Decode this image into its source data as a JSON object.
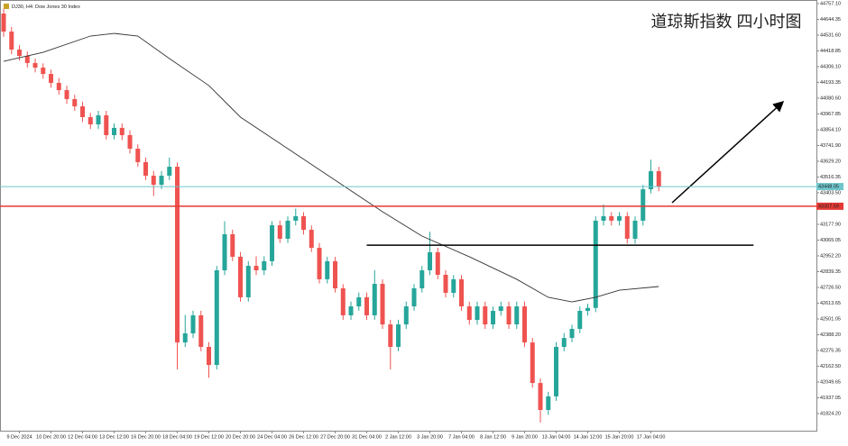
{
  "chart_data": {
    "type": "candlestick",
    "header": "DJ30, H4: Dow Jones 30 Index",
    "title": "道琼斯指数 四小时图",
    "up_color": "#26a69a",
    "down_color": "#ef5350",
    "open": [
      44686,
      44557,
      44428,
      44383,
      44332,
      44299,
      44254,
      44190,
      44138,
      44074,
      44022,
      43945,
      43893,
      43958,
      43816,
      43868,
      43816,
      43719,
      43623,
      43526,
      43461,
      43526,
      43590,
      42333,
      42398,
      42527,
      42301,
      42172,
      42849,
      43107,
      42946,
      42656,
      42881,
      42849,
      42914,
      43171,
      43075,
      43204,
      43236,
      43139,
      43010,
      42785,
      42914,
      42720,
      42527,
      42591,
      42656,
      42527,
      42752,
      42462,
      42301,
      42462,
      42591,
      42720,
      42849,
      42978,
      42817,
      42688,
      42785,
      42591,
      42494,
      42591,
      42462,
      42559,
      42591,
      42462,
      42591,
      42333,
      42043,
      41850,
      41947,
      42301,
      42365,
      42430,
      42559,
      42580,
      43204,
      43236,
      43204,
      43236,
      43075,
      43204,
      43429,
      43558
    ],
    "high": [
      44720,
      44590,
      44460,
      44415,
      44365,
      44330,
      44285,
      44225,
      44170,
      44105,
      44055,
      43975,
      43990,
      43990,
      43900,
      43900,
      43850,
      43750,
      43655,
      43560,
      43560,
      43655,
      43620,
      42530,
      42560,
      42560,
      42335,
      42880,
      43200,
      43140,
      42980,
      42915,
      42950,
      42950,
      43200,
      43205,
      43235,
      43290,
      43265,
      43170,
      43045,
      42945,
      42945,
      42750,
      42625,
      42690,
      42690,
      42850,
      42785,
      42495,
      42495,
      42625,
      42750,
      42880,
      43125,
      43010,
      42850,
      42815,
      42815,
      42625,
      42625,
      42625,
      42590,
      42625,
      42625,
      42625,
      42625,
      42365,
      42075,
      41980,
      42335,
      42400,
      42460,
      42590,
      42610,
      43235,
      43320,
      43265,
      43265,
      43265,
      43235,
      43460,
      43640,
      43590
    ],
    "low": [
      44520,
      44395,
      44350,
      44300,
      44265,
      44220,
      44155,
      44105,
      44040,
      43990,
      43910,
      43860,
      43860,
      43785,
      43785,
      43780,
      43685,
      43590,
      43495,
      43380,
      43430,
      43495,
      42140,
      42300,
      42365,
      42270,
      42080,
      42140,
      42815,
      42915,
      42625,
      42625,
      42815,
      42815,
      42880,
      43045,
      43045,
      43170,
      43105,
      42980,
      42755,
      42755,
      42690,
      42495,
      42495,
      42560,
      42495,
      42495,
      42430,
      42140,
      42270,
      42430,
      42560,
      42690,
      42815,
      42785,
      42655,
      42655,
      42560,
      42460,
      42460,
      42430,
      42430,
      42525,
      42430,
      42430,
      42300,
      42010,
      41760,
      41815,
      41915,
      42270,
      42335,
      42400,
      42525,
      42550,
      43170,
      43170,
      43170,
      43040,
      43040,
      43170,
      43400,
      43415
    ],
    "close": [
      44557,
      44428,
      44383,
      44332,
      44299,
      44254,
      44190,
      44138,
      44074,
      44022,
      43945,
      43893,
      43958,
      43816,
      43868,
      43816,
      43719,
      43623,
      43526,
      43461,
      43526,
      43590,
      42333,
      42398,
      42527,
      42301,
      42172,
      42849,
      43107,
      42946,
      42656,
      42881,
      42849,
      42914,
      43171,
      43075,
      43204,
      43236,
      43139,
      43010,
      42785,
      42914,
      42720,
      42527,
      42591,
      42656,
      42527,
      42752,
      42462,
      42301,
      42462,
      42591,
      42720,
      42849,
      42978,
      42817,
      42688,
      42785,
      42591,
      42494,
      42591,
      42462,
      42559,
      42591,
      42462,
      42591,
      42333,
      42043,
      41850,
      41947,
      42301,
      42365,
      42430,
      42559,
      42580,
      43204,
      43236,
      43204,
      43236,
      43075,
      43204,
      43429,
      43558,
      43448
    ],
    "ma": {
      "color": "#333333",
      "x": [
        0,
        5,
        11,
        14,
        17,
        21,
        26,
        30,
        36,
        42,
        48,
        53,
        59,
        65,
        69,
        72,
        75,
        78,
        83
      ],
      "values": [
        44344,
        44409,
        44525,
        44544,
        44525,
        44364,
        44171,
        43945,
        43719,
        43494,
        43268,
        43094,
        42946,
        42785,
        42656,
        42623,
        42656,
        42707,
        42733
      ]
    },
    "price_lines": [
      {
        "value": 43448.05,
        "color": "#6ec6cc"
      },
      {
        "value": 43307.59,
        "color": "#e53935"
      }
    ],
    "hlines": [
      {
        "value": 43029,
        "x": [
          46,
          95
        ],
        "color": "#000000"
      }
    ],
    "xlim": [
      -0.46,
      102.97
    ],
    "ylim": [
      41701.7,
      44782.9
    ],
    "yticks": [
      {
        "value": 44757.1,
        "label": "44757.10"
      },
      44644.35,
      {
        "value": 44531.6,
        "label": "44531.60"
      },
      44418.85,
      {
        "value": 44306.1,
        "label": "44306.10"
      },
      44193.35,
      {
        "value": 44080.6,
        "label": "44080.60"
      },
      43967.85,
      {
        "value": 43854.1,
        "label": "43854.10"
      },
      {
        "value": 43741.9,
        "label": "43741.90"
      },
      {
        "value": 43629.2,
        "label": "43629.20"
      },
      43516.35,
      {
        "value": 43403.5,
        "label": "43403.50"
      },
      {
        "value": 43177.9,
        "label": "43177.90"
      },
      43065.05,
      {
        "value": 42952.2,
        "label": "42952.20"
      },
      42839.35,
      {
        "value": 42726.5,
        "label": "42726.50"
      },
      42613.65,
      42501.05,
      {
        "value": 42388.2,
        "label": "42388.20"
      },
      42275.35,
      {
        "value": 42162.5,
        "label": "42162.50"
      },
      42049.65,
      41937.05,
      {
        "value": 41824.2,
        "label": "41824.20"
      }
    ],
    "xticks": [
      {
        "value": 2,
        "label": "9 Dec 2024"
      },
      {
        "value": 6,
        "label": "10 Dec 20:00"
      },
      {
        "value": 10,
        "label": "12 Dec 04:00"
      },
      {
        "value": 14,
        "label": "13 Dec 12:00"
      },
      {
        "value": 18,
        "label": "16 Dec 20:00"
      },
      {
        "value": 22,
        "label": "18 Dec 04:00"
      },
      {
        "value": 26,
        "label": "19 Dec 12:00"
      },
      {
        "value": 30,
        "label": "20 Dec 20:00"
      },
      {
        "value": 34,
        "label": "24 Dec 04:00"
      },
      {
        "value": 38,
        "label": "26 Dec 12:00"
      },
      {
        "value": 42,
        "label": "27 Dec 20:00"
      },
      {
        "value": 46,
        "label": "31 Dec 04:00"
      },
      {
        "value": 50,
        "label": "2 Jan 12:00"
      },
      {
        "value": 54,
        "label": "3 Jan 20:00"
      },
      {
        "value": 58,
        "label": "7 Jan 04:00"
      },
      {
        "value": 62,
        "label": "8 Jan 12:00"
      },
      {
        "value": 66,
        "label": "9 Jan 20:00"
      },
      {
        "value": 70,
        "label": "13 Jan 04:00"
      },
      {
        "value": 74,
        "label": "14 Jan 12:00"
      },
      {
        "value": 78,
        "label": "15 Jan 20:00"
      },
      {
        "value": 82,
        "label": "17 Jan 04:00"
      }
    ]
  }
}
